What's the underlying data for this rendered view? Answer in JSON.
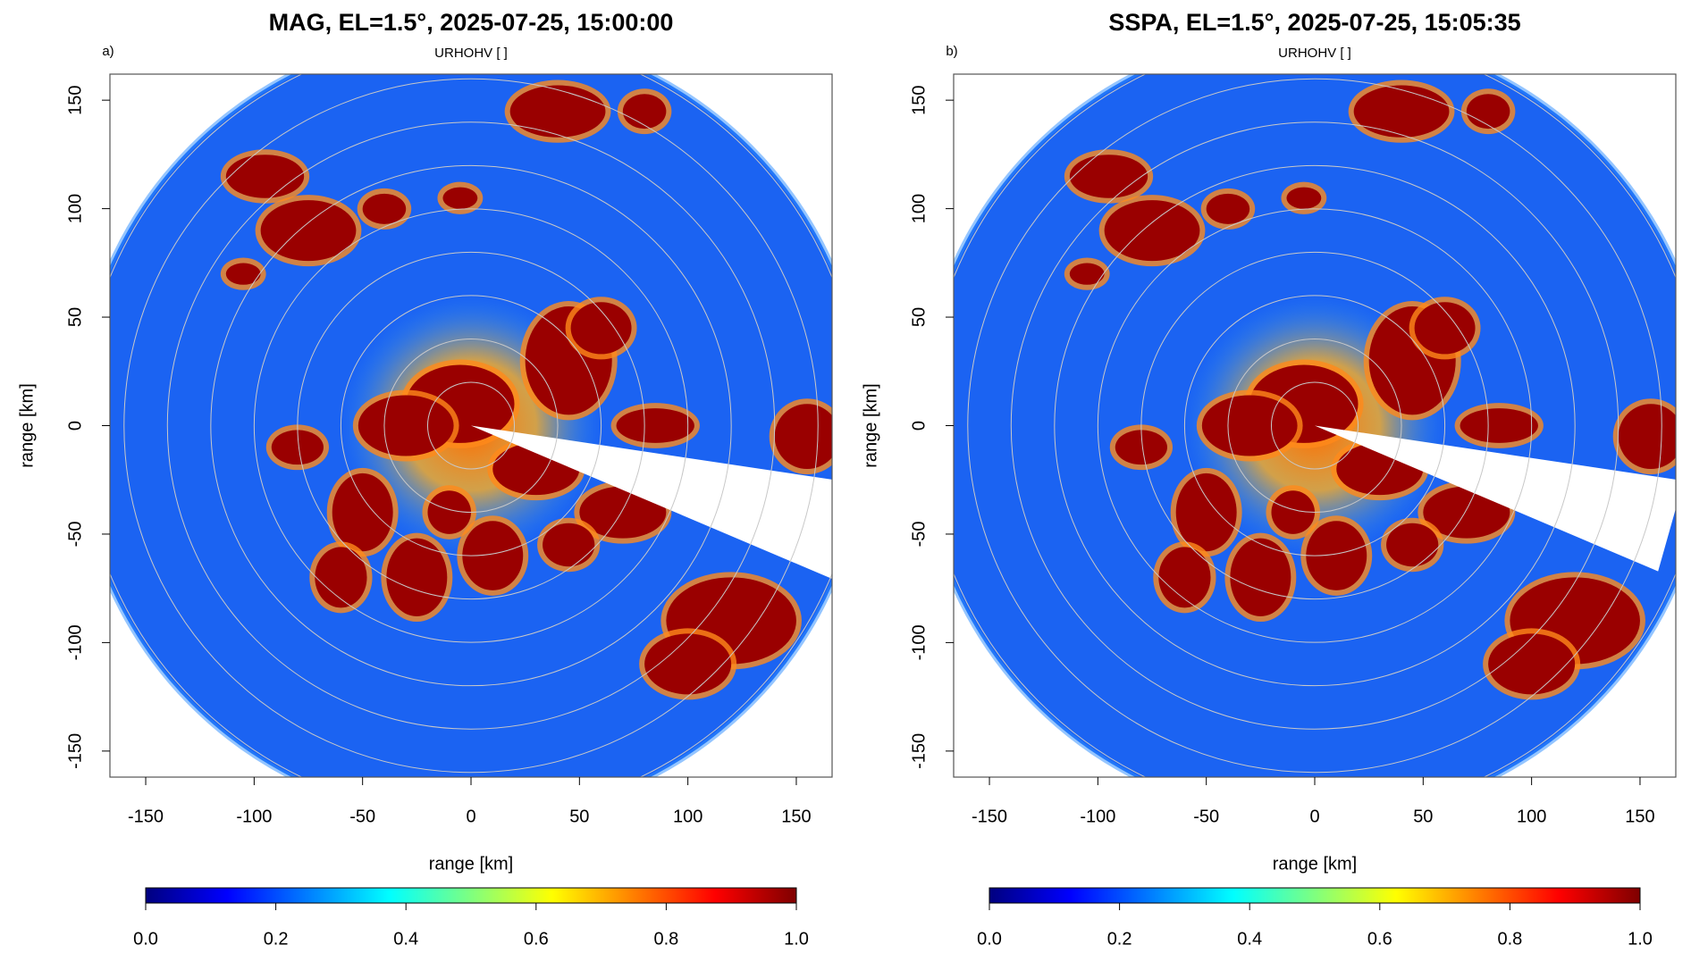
{
  "chart_data": [
    {
      "type": "ppi",
      "title": "MAG, EL=1.5°, 2025-07-25, 15:00:00",
      "panel_label": "a)",
      "subtitle": "URHOHV [ ]",
      "xlabel": "range [km]",
      "ylabel": "range [km]",
      "xlim": [
        -166.5,
        166.5
      ],
      "ylim": [
        -162,
        162
      ],
      "xticks": [
        -150,
        -100,
        -50,
        0,
        50,
        100,
        150
      ],
      "yticks": [
        -150,
        -100,
        -50,
        0,
        50,
        100,
        150
      ],
      "colorbar": {
        "lim": [
          0,
          1
        ],
        "ticks": [
          {
            "value": 0,
            "label": "0.0"
          },
          0.2,
          0.4,
          0.6,
          0.8,
          {
            "value": 1,
            "label": "1.0"
          }
        ],
        "colors": [
          "#00007f",
          "#0000ff",
          "#007fff",
          "#00ffff",
          "#7fff7f",
          "#ffff00",
          "#ff7f00",
          "#ff0000",
          "#7f0000"
        ]
      }
    },
    {
      "type": "ppi",
      "title": "SSPA, EL=1.5°, 2025-07-25, 15:05:35",
      "panel_label": "b)",
      "subtitle": "URHOHV [ ]",
      "xlabel": "range [km]",
      "ylabel": "range [km]",
      "xlim": [
        -166.5,
        166.5
      ],
      "ylim": [
        -162,
        162
      ],
      "xticks": [
        -150,
        -100,
        -50,
        0,
        50,
        100,
        150
      ],
      "yticks": [
        -150,
        -100,
        -50,
        0,
        50,
        100,
        150
      ],
      "colorbar": {
        "lim": [
          0,
          1
        ],
        "ticks": [
          {
            "value": 0,
            "label": "0.0"
          },
          0.2,
          0.4,
          0.6,
          0.8,
          {
            "value": 1,
            "label": "1.0"
          }
        ],
        "colors": [
          "#00007f",
          "#0000ff",
          "#007fff",
          "#00ffff",
          "#7fff7f",
          "#ffff00",
          "#ff7f00",
          "#ff0000",
          "#7f0000"
        ]
      }
    }
  ]
}
